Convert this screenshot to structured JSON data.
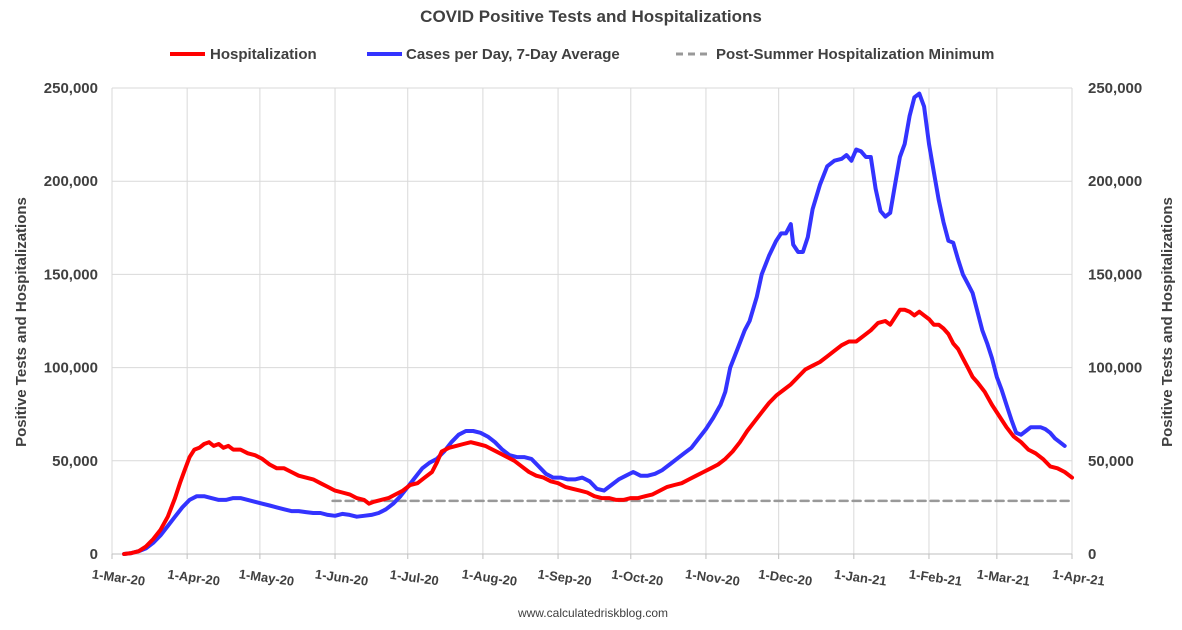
{
  "chart_data": {
    "type": "line",
    "title": "COVID Positive Tests and Hospitalizations",
    "ylabel_left": "Positive Tests and Hospitalizations",
    "ylabel_right": "Positive Tests and Hospitalizations",
    "ylim": [
      0,
      250000
    ],
    "yticks": [
      0,
      50000,
      100000,
      150000,
      200000,
      250000
    ],
    "ytick_labels": [
      "0",
      "50,000",
      "100,000",
      "150,000",
      "200,000",
      "250,000"
    ],
    "xlim": [
      0,
      396
    ],
    "xticks": [
      0,
      31,
      61,
      92,
      122,
      153,
      184,
      214,
      245,
      275,
      306,
      337,
      365,
      396
    ],
    "xtick_labels": [
      "1-Mar-20",
      "1-Apr-20",
      "1-May-20",
      "1-Jun-20",
      "1-Jul-20",
      "1-Aug-20",
      "1-Sep-20",
      "1-Oct-20",
      "1-Nov-20",
      "1-Dec-20",
      "1-Jan-21",
      "1-Feb-21",
      "1-Mar-21",
      "1-Apr-21"
    ],
    "x_unit": "days since 1-Mar-20",
    "grid": true,
    "legend_position": "top",
    "source": "www.calculatedriskblog.com",
    "series": [
      {
        "name": "Hospitalization",
        "color": "#ff0000",
        "style": "solid",
        "points": [
          [
            5,
            0
          ],
          [
            8,
            500
          ],
          [
            11,
            1500
          ],
          [
            14,
            4000
          ],
          [
            17,
            8000
          ],
          [
            20,
            13000
          ],
          [
            23,
            20000
          ],
          [
            26,
            30000
          ],
          [
            28,
            38000
          ],
          [
            30,
            45000
          ],
          [
            32,
            52000
          ],
          [
            34,
            56000
          ],
          [
            36,
            57000
          ],
          [
            38,
            59000
          ],
          [
            40,
            60000
          ],
          [
            42,
            58000
          ],
          [
            44,
            59000
          ],
          [
            46,
            57000
          ],
          [
            48,
            58000
          ],
          [
            50,
            56000
          ],
          [
            53,
            56000
          ],
          [
            56,
            54000
          ],
          [
            59,
            53000
          ],
          [
            62,
            51000
          ],
          [
            65,
            48000
          ],
          [
            68,
            46000
          ],
          [
            71,
            46000
          ],
          [
            74,
            44000
          ],
          [
            77,
            42000
          ],
          [
            80,
            41000
          ],
          [
            83,
            40000
          ],
          [
            86,
            38000
          ],
          [
            89,
            36000
          ],
          [
            92,
            34000
          ],
          [
            95,
            33000
          ],
          [
            98,
            32000
          ],
          [
            101,
            30000
          ],
          [
            104,
            29000
          ],
          [
            106,
            27000
          ],
          [
            108,
            28000
          ],
          [
            111,
            29000
          ],
          [
            114,
            30000
          ],
          [
            117,
            32000
          ],
          [
            120,
            34000
          ],
          [
            123,
            37000
          ],
          [
            126,
            38000
          ],
          [
            129,
            41000
          ],
          [
            132,
            44000
          ],
          [
            134,
            49000
          ],
          [
            136,
            55000
          ],
          [
            139,
            57000
          ],
          [
            142,
            58000
          ],
          [
            145,
            59000
          ],
          [
            148,
            60000
          ],
          [
            151,
            59000
          ],
          [
            154,
            58000
          ],
          [
            157,
            56000
          ],
          [
            160,
            54000
          ],
          [
            163,
            52000
          ],
          [
            166,
            50000
          ],
          [
            169,
            47000
          ],
          [
            172,
            44000
          ],
          [
            175,
            42000
          ],
          [
            178,
            41000
          ],
          [
            181,
            39000
          ],
          [
            184,
            38000
          ],
          [
            187,
            36000
          ],
          [
            190,
            35000
          ],
          [
            193,
            34000
          ],
          [
            196,
            33000
          ],
          [
            199,
            31000
          ],
          [
            202,
            30000
          ],
          [
            205,
            30000
          ],
          [
            208,
            29000
          ],
          [
            211,
            29000
          ],
          [
            214,
            30000
          ],
          [
            217,
            30000
          ],
          [
            220,
            31000
          ],
          [
            223,
            32000
          ],
          [
            226,
            34000
          ],
          [
            229,
            36000
          ],
          [
            232,
            37000
          ],
          [
            235,
            38000
          ],
          [
            238,
            40000
          ],
          [
            241,
            42000
          ],
          [
            244,
            44000
          ],
          [
            247,
            46000
          ],
          [
            250,
            48000
          ],
          [
            253,
            51000
          ],
          [
            256,
            55000
          ],
          [
            259,
            60000
          ],
          [
            262,
            66000
          ],
          [
            265,
            71000
          ],
          [
            268,
            76000
          ],
          [
            271,
            81000
          ],
          [
            274,
            85000
          ],
          [
            277,
            88000
          ],
          [
            280,
            91000
          ],
          [
            283,
            95000
          ],
          [
            286,
            99000
          ],
          [
            289,
            101000
          ],
          [
            292,
            103000
          ],
          [
            295,
            106000
          ],
          [
            298,
            109000
          ],
          [
            301,
            112000
          ],
          [
            304,
            114000
          ],
          [
            307,
            114000
          ],
          [
            310,
            117000
          ],
          [
            313,
            120000
          ],
          [
            316,
            124000
          ],
          [
            319,
            125000
          ],
          [
            321,
            123000
          ],
          [
            323,
            127000
          ],
          [
            325,
            131000
          ],
          [
            327,
            131000
          ],
          [
            329,
            130000
          ],
          [
            331,
            128000
          ],
          [
            333,
            130000
          ],
          [
            335,
            128000
          ],
          [
            337,
            126000
          ],
          [
            339,
            123000
          ],
          [
            341,
            123000
          ],
          [
            343,
            121000
          ],
          [
            345,
            118000
          ],
          [
            347,
            113000
          ],
          [
            349,
            110000
          ],
          [
            351,
            105000
          ],
          [
            353,
            100000
          ],
          [
            355,
            95000
          ],
          [
            357,
            92000
          ],
          [
            360,
            87000
          ],
          [
            363,
            80000
          ],
          [
            366,
            74000
          ],
          [
            369,
            68000
          ],
          [
            372,
            63000
          ],
          [
            375,
            60000
          ],
          [
            378,
            56000
          ],
          [
            381,
            54000
          ],
          [
            384,
            51000
          ],
          [
            387,
            47000
          ],
          [
            390,
            46000
          ],
          [
            393,
            44000
          ],
          [
            396,
            41000
          ]
        ]
      },
      {
        "name": "Cases per Day, 7-Day Average",
        "color": "#3333ff",
        "style": "solid",
        "points": [
          [
            5,
            0
          ],
          [
            8,
            500
          ],
          [
            11,
            1500
          ],
          [
            14,
            3000
          ],
          [
            17,
            6000
          ],
          [
            20,
            10000
          ],
          [
            23,
            15000
          ],
          [
            26,
            20000
          ],
          [
            29,
            25000
          ],
          [
            32,
            29000
          ],
          [
            35,
            31000
          ],
          [
            38,
            31000
          ],
          [
            41,
            30000
          ],
          [
            44,
            29000
          ],
          [
            47,
            29000
          ],
          [
            50,
            30000
          ],
          [
            53,
            30000
          ],
          [
            56,
            29000
          ],
          [
            59,
            28000
          ],
          [
            62,
            27000
          ],
          [
            65,
            26000
          ],
          [
            68,
            25000
          ],
          [
            71,
            24000
          ],
          [
            74,
            23000
          ],
          [
            77,
            23000
          ],
          [
            80,
            22500
          ],
          [
            83,
            22000
          ],
          [
            86,
            22000
          ],
          [
            89,
            21000
          ],
          [
            92,
            20500
          ],
          [
            95,
            21500
          ],
          [
            98,
            21000
          ],
          [
            101,
            20000
          ],
          [
            104,
            20500
          ],
          [
            107,
            21000
          ],
          [
            110,
            22000
          ],
          [
            113,
            24000
          ],
          [
            116,
            27000
          ],
          [
            119,
            31000
          ],
          [
            122,
            36000
          ],
          [
            125,
            41000
          ],
          [
            128,
            46000
          ],
          [
            131,
            49000
          ],
          [
            134,
            51000
          ],
          [
            137,
            55000
          ],
          [
            140,
            60000
          ],
          [
            143,
            64000
          ],
          [
            146,
            66000
          ],
          [
            149,
            66000
          ],
          [
            152,
            65000
          ],
          [
            155,
            63000
          ],
          [
            158,
            60000
          ],
          [
            161,
            56000
          ],
          [
            164,
            53000
          ],
          [
            167,
            52000
          ],
          [
            170,
            52000
          ],
          [
            173,
            51000
          ],
          [
            176,
            47000
          ],
          [
            179,
            43000
          ],
          [
            182,
            41000
          ],
          [
            185,
            41000
          ],
          [
            188,
            40000
          ],
          [
            191,
            40000
          ],
          [
            194,
            41000
          ],
          [
            197,
            39000
          ],
          [
            200,
            35000
          ],
          [
            203,
            34000
          ],
          [
            206,
            37000
          ],
          [
            209,
            40000
          ],
          [
            212,
            42000
          ],
          [
            215,
            44000
          ],
          [
            218,
            42000
          ],
          [
            221,
            42000
          ],
          [
            224,
            43000
          ],
          [
            227,
            45000
          ],
          [
            230,
            48000
          ],
          [
            233,
            51000
          ],
          [
            236,
            54000
          ],
          [
            239,
            57000
          ],
          [
            242,
            62000
          ],
          [
            245,
            67000
          ],
          [
            248,
            73000
          ],
          [
            251,
            80000
          ],
          [
            253,
            87000
          ],
          [
            255,
            100000
          ],
          [
            258,
            110000
          ],
          [
            261,
            120000
          ],
          [
            263,
            125000
          ],
          [
            266,
            138000
          ],
          [
            268,
            150000
          ],
          [
            271,
            160000
          ],
          [
            274,
            168000
          ],
          [
            276,
            172000
          ],
          [
            278,
            172000
          ],
          [
            280,
            177000
          ],
          [
            281,
            166000
          ],
          [
            283,
            162000
          ],
          [
            285,
            162000
          ],
          [
            287,
            170000
          ],
          [
            289,
            185000
          ],
          [
            292,
            198000
          ],
          [
            295,
            208000
          ],
          [
            298,
            211000
          ],
          [
            301,
            212000
          ],
          [
            303,
            214000
          ],
          [
            305,
            211000
          ],
          [
            307,
            217000
          ],
          [
            309,
            216000
          ],
          [
            311,
            213000
          ],
          [
            313,
            213000
          ],
          [
            315,
            196000
          ],
          [
            317,
            184000
          ],
          [
            319,
            181000
          ],
          [
            321,
            183000
          ],
          [
            323,
            198000
          ],
          [
            325,
            213000
          ],
          [
            327,
            220000
          ],
          [
            329,
            235000
          ],
          [
            331,
            245000
          ],
          [
            333,
            247000
          ],
          [
            335,
            240000
          ],
          [
            337,
            220000
          ],
          [
            339,
            205000
          ],
          [
            341,
            190000
          ],
          [
            343,
            178000
          ],
          [
            345,
            168000
          ],
          [
            347,
            167000
          ],
          [
            349,
            158000
          ],
          [
            351,
            150000
          ],
          [
            353,
            145000
          ],
          [
            355,
            140000
          ],
          [
            357,
            130000
          ],
          [
            359,
            120000
          ],
          [
            361,
            113000
          ],
          [
            363,
            105000
          ],
          [
            365,
            95000
          ],
          [
            367,
            88000
          ],
          [
            369,
            80000
          ],
          [
            371,
            72000
          ],
          [
            373,
            65000
          ],
          [
            375,
            64000
          ],
          [
            377,
            66000
          ],
          [
            379,
            68000
          ],
          [
            381,
            68000
          ],
          [
            383,
            68000
          ],
          [
            385,
            67000
          ],
          [
            387,
            65000
          ],
          [
            389,
            62000
          ],
          [
            391,
            60000
          ],
          [
            393,
            58000
          ]
        ]
      },
      {
        "name": "Post-Summer Hospitalization Minimum",
        "color": "#999999",
        "style": "dashed",
        "points": [
          [
            91,
            28500
          ],
          [
            396,
            28500
          ]
        ]
      }
    ]
  }
}
